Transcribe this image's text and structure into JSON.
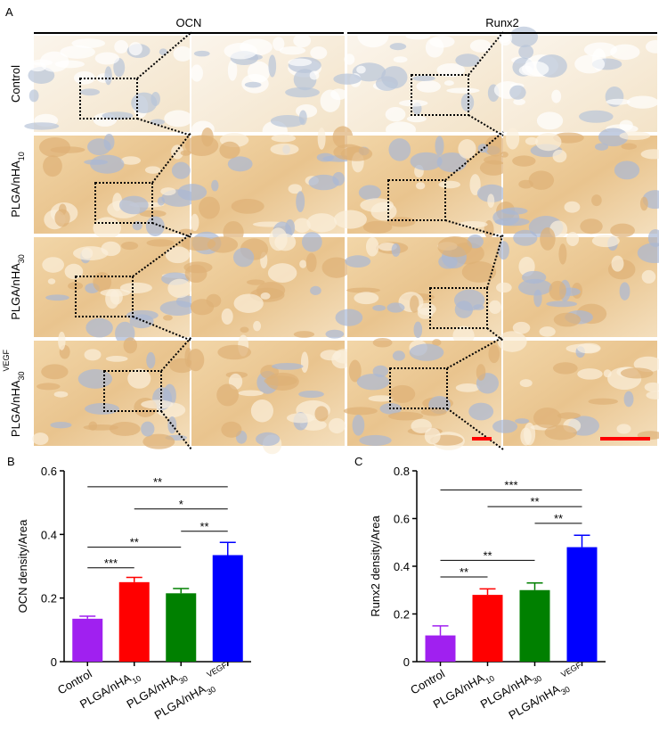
{
  "panel_a": {
    "label": "A",
    "columns": [
      "OCN",
      "Runx2"
    ],
    "rows": [
      {
        "text": "Control"
      },
      {
        "text": "PLGA/nHA",
        "sub": "10"
      },
      {
        "text": "PLGA/nHA",
        "sub": "30"
      },
      {
        "text": "PLGA/nHA",
        "sub": "30",
        "sup": "VEGF"
      }
    ]
  },
  "chart_data": [
    {
      "type": "bar",
      "panel": "B",
      "ylabel": "OCN density/Area",
      "categories": [
        {
          "text": "Control"
        },
        {
          "text": "PLGA/nHA",
          "sub": "10"
        },
        {
          "text": "PLGA/nHA",
          "sub": "30"
        },
        {
          "text": "PLGA/nHA",
          "sub": "30",
          "sup": "VEGF"
        }
      ],
      "values": [
        0.135,
        0.25,
        0.215,
        0.335
      ],
      "errors": [
        0.008,
        0.015,
        0.015,
        0.04
      ],
      "colors": [
        "#a020f0",
        "#ff0000",
        "#008000",
        "#0000ff"
      ],
      "ylim": [
        0,
        0.6
      ],
      "yticks": [
        0,
        0.2,
        0.4,
        0.6
      ],
      "significance": [
        {
          "from": 0,
          "to": 3,
          "y": 0.55,
          "label": "**"
        },
        {
          "from": 1,
          "to": 3,
          "y": 0.48,
          "label": "*"
        },
        {
          "from": 2,
          "to": 3,
          "y": 0.41,
          "label": "**"
        },
        {
          "from": 0,
          "to": 2,
          "y": 0.36,
          "label": "**"
        },
        {
          "from": 0,
          "to": 1,
          "y": 0.295,
          "label": "***"
        }
      ]
    },
    {
      "type": "bar",
      "panel": "C",
      "ylabel": "Runx2 density/Area",
      "categories": [
        {
          "text": "Control"
        },
        {
          "text": "PLGA/nHA",
          "sub": "10"
        },
        {
          "text": "PLGA/nHA",
          "sub": "30"
        },
        {
          "text": "PLGA/nHA",
          "sub": "30",
          "sup": "VEGF"
        }
      ],
      "values": [
        0.11,
        0.28,
        0.3,
        0.48
      ],
      "errors": [
        0.04,
        0.025,
        0.03,
        0.05
      ],
      "colors": [
        "#a020f0",
        "#ff0000",
        "#008000",
        "#0000ff"
      ],
      "ylim": [
        0,
        0.8
      ],
      "yticks": [
        0,
        0.2,
        0.4,
        0.6,
        0.8
      ],
      "significance": [
        {
          "from": 0,
          "to": 3,
          "y": 0.72,
          "label": "***"
        },
        {
          "from": 1,
          "to": 3,
          "y": 0.65,
          "label": "**"
        },
        {
          "from": 2,
          "to": 3,
          "y": 0.58,
          "label": "**"
        },
        {
          "from": 0,
          "to": 2,
          "y": 0.425,
          "label": "**"
        },
        {
          "from": 0,
          "to": 1,
          "y": 0.355,
          "label": "**"
        }
      ]
    }
  ]
}
